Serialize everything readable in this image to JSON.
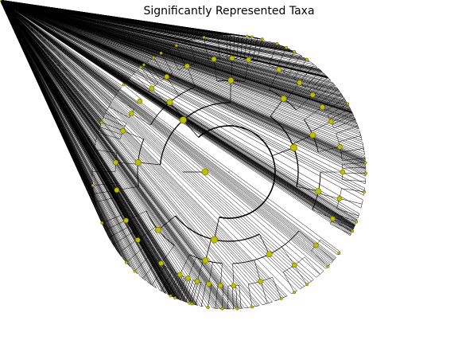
{
  "title": "Significantly Represented Taxa",
  "colors": {
    "background": "#ffffff",
    "branch": "#000000",
    "node_fill": "#bfbf00",
    "node_edge": "#6b6b00"
  },
  "tree": {
    "levels": 5,
    "layout": "circular cladogram",
    "root_marker": "center dot"
  }
}
